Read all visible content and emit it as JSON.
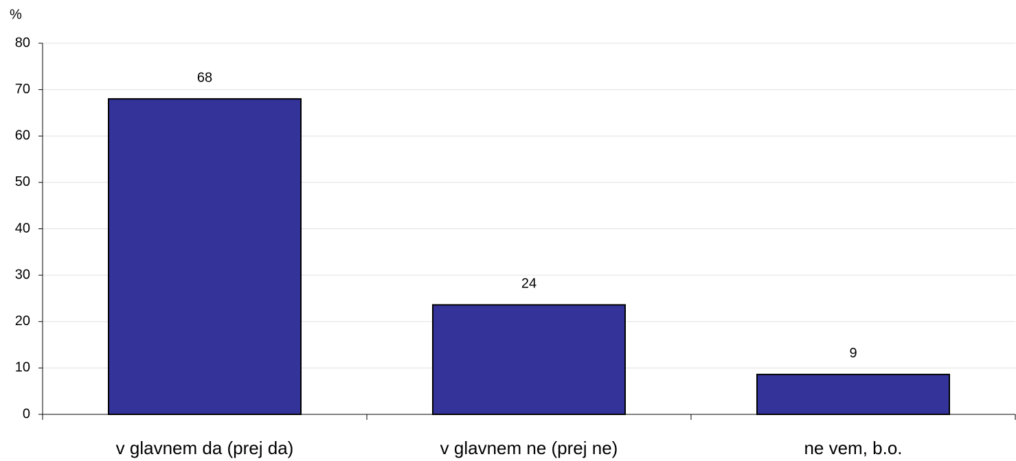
{
  "chart_data": {
    "type": "bar",
    "y_label": "%",
    "categories": [
      "v glavnem da (prej da)",
      "v glavnem ne (prej ne)",
      "ne vem, b.o."
    ],
    "values": [
      68,
      23.6,
      8.6
    ],
    "value_labels": [
      "68",
      "24",
      "9"
    ],
    "color": "#333399",
    "ylim": [
      0,
      80
    ],
    "yticks": [
      0,
      10,
      20,
      30,
      40,
      50,
      60,
      70,
      80
    ],
    "grid": true
  }
}
